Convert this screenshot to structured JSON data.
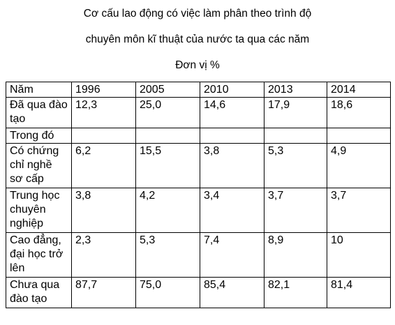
{
  "title": {
    "line1": "Cơ cấu lao động có việc làm phân theo trình độ",
    "line2": "chuyên môn kĩ thuật của nước ta qua các năm",
    "unit": "Đơn vị %"
  },
  "table": {
    "header": [
      "Năm",
      "1996",
      "2005",
      "2010",
      "2013",
      "2014"
    ],
    "rows": [
      {
        "label": "Đã qua đào tạo",
        "values": [
          "12,3",
          "25,0",
          "14,6",
          "17,9",
          "18,6"
        ]
      },
      {
        "label": "Trong đó",
        "values": [
          "",
          "",
          "",
          "",
          ""
        ]
      },
      {
        "label": "Có chứng chỉ nghề sơ cấp",
        "values": [
          "6,2",
          "15,5",
          "3,8",
          "5,3",
          "4,9"
        ]
      },
      {
        "label": "Trung học chuyên nghiệp",
        "values": [
          "3,8",
          "4,2",
          "3,4",
          "3,7",
          "3,7"
        ]
      },
      {
        "label": "Cao đẳng, đại học trở lên",
        "values": [
          "2,3",
          "5,3",
          "7,4",
          "8,9",
          "10"
        ]
      },
      {
        "label": "Chưa qua đào tạo",
        "values": [
          "87,7",
          "75,0",
          "85,4",
          "82,1",
          "81,4"
        ]
      }
    ]
  }
}
